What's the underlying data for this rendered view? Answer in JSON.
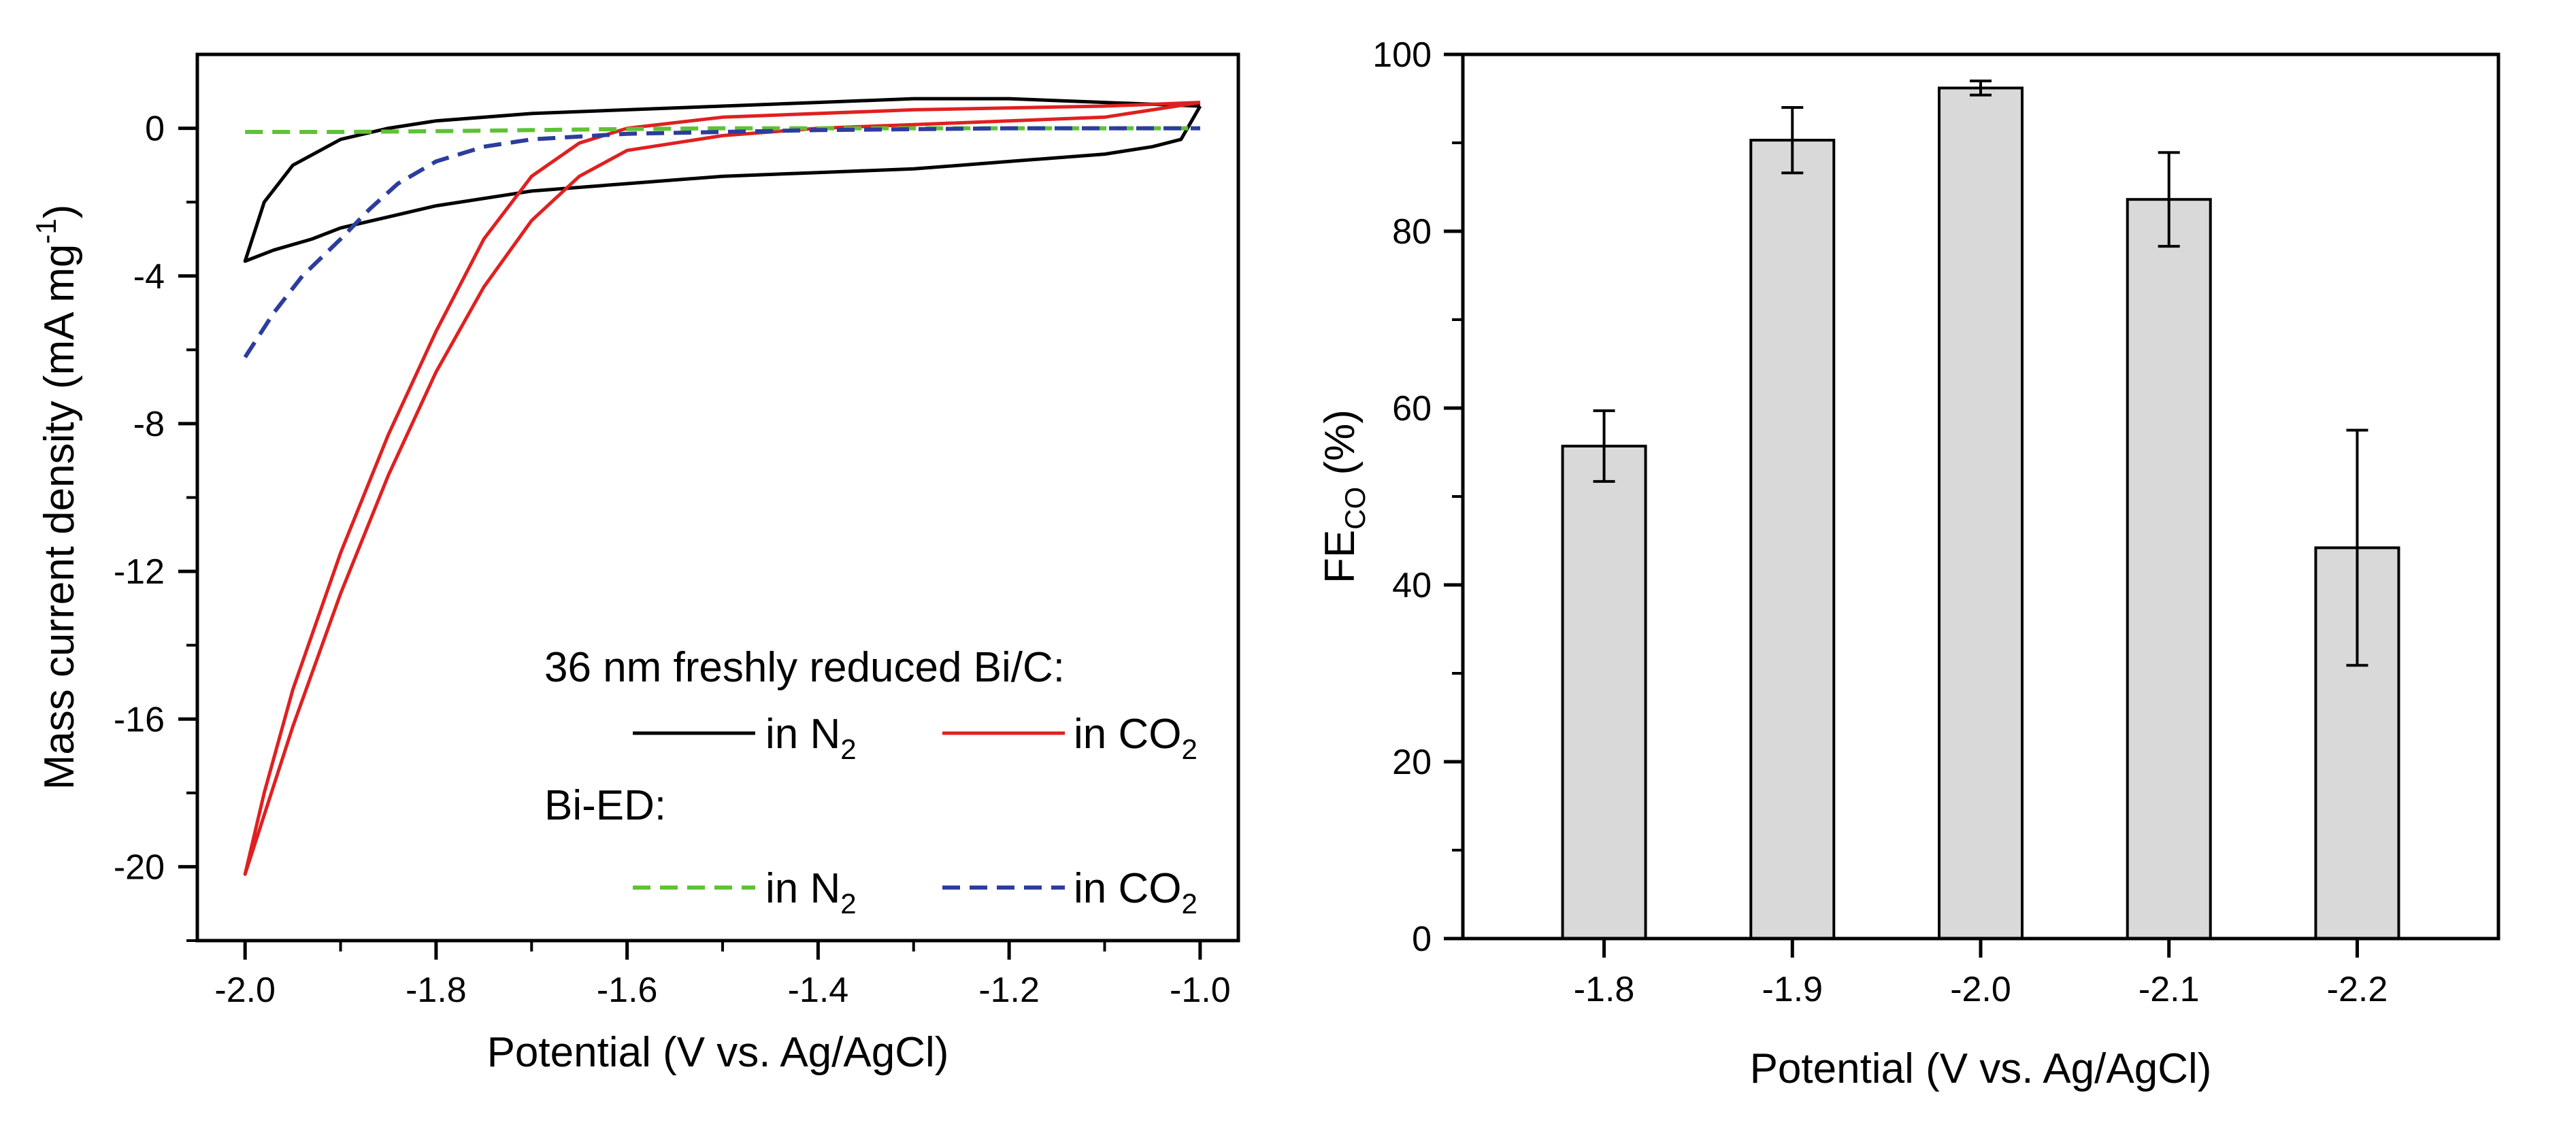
{
  "chart_data": [
    {
      "type": "line",
      "xlabel": "Potential (V vs. Ag/AgCl)",
      "ylabel": {
        "main": "Mass current density (mA mg",
        "sup": "-1",
        "end": ")"
      },
      "xlim": [
        -2.05,
        -0.96
      ],
      "ylim": [
        -22,
        2
      ],
      "x_ticks": [
        -2.0,
        -1.8,
        -1.6,
        -1.4,
        -1.2,
        -1.0
      ],
      "x_tick_labels": [
        "-2.0",
        "-1.8",
        "-1.6",
        "-1.4",
        "-1.2",
        "-1.0"
      ],
      "y_ticks": [
        0,
        -4,
        -8,
        -12,
        -16,
        -20
      ],
      "y_tick_labels": [
        "0",
        "-4",
        "-8",
        "-12",
        "-16",
        "-20"
      ],
      "legend": {
        "group1_title": "36 nm freshly reduced Bi/C:",
        "group2_title": "Bi-ED:",
        "entries": [
          {
            "label": "in N",
            "sub": "2",
            "color": "#000000",
            "dash": "solid"
          },
          {
            "label": "in CO",
            "sub": "2",
            "color": "#e02020",
            "dash": "solid"
          },
          {
            "label": "in N",
            "sub": "2",
            "color": "#5ec234",
            "dash": "dashed"
          },
          {
            "label": "in CO",
            "sub": "2",
            "color": "#2c3d9e",
            "dash": "dashed"
          }
        ]
      },
      "series": [
        {
          "color": "#000000",
          "dash": "solid",
          "points": [
            [
              -1.0,
              0.6
            ],
            [
              -1.1,
              0.7
            ],
            [
              -1.2,
              0.8
            ],
            [
              -1.3,
              0.8
            ],
            [
              -1.4,
              0.7
            ],
            [
              -1.5,
              0.6
            ],
            [
              -1.6,
              0.5
            ],
            [
              -1.7,
              0.4
            ],
            [
              -1.8,
              0.2
            ],
            [
              -1.85,
              0.0
            ],
            [
              -1.9,
              -0.3
            ],
            [
              -1.95,
              -1.0
            ],
            [
              -1.98,
              -2.0
            ],
            [
              -2.0,
              -3.6
            ],
            [
              -1.97,
              -3.3
            ],
            [
              -1.93,
              -3.0
            ],
            [
              -1.9,
              -2.7
            ],
            [
              -1.85,
              -2.4
            ],
            [
              -1.8,
              -2.1
            ],
            [
              -1.7,
              -1.7
            ],
            [
              -1.6,
              -1.5
            ],
            [
              -1.5,
              -1.3
            ],
            [
              -1.4,
              -1.2
            ],
            [
              -1.3,
              -1.1
            ],
            [
              -1.2,
              -0.9
            ],
            [
              -1.1,
              -0.7
            ],
            [
              -1.05,
              -0.5
            ],
            [
              -1.02,
              -0.3
            ],
            [
              -1.0,
              0.6
            ]
          ]
        },
        {
          "color": "#e02020",
          "dash": "solid",
          "points": [
            [
              -1.0,
              0.7
            ],
            [
              -1.1,
              0.6
            ],
            [
              -1.3,
              0.5
            ],
            [
              -1.5,
              0.3
            ],
            [
              -1.6,
              0.0
            ],
            [
              -1.65,
              -0.4
            ],
            [
              -1.7,
              -1.3
            ],
            [
              -1.75,
              -3.0
            ],
            [
              -1.8,
              -5.5
            ],
            [
              -1.85,
              -8.3
            ],
            [
              -1.9,
              -11.5
            ],
            [
              -1.95,
              -15.2
            ],
            [
              -1.98,
              -18.0
            ],
            [
              -2.0,
              -20.2
            ],
            [
              -1.98,
              -18.6
            ],
            [
              -1.95,
              -16.2
            ],
            [
              -1.9,
              -12.6
            ],
            [
              -1.85,
              -9.4
            ],
            [
              -1.8,
              -6.6
            ],
            [
              -1.75,
              -4.3
            ],
            [
              -1.7,
              -2.5
            ],
            [
              -1.65,
              -1.3
            ],
            [
              -1.6,
              -0.6
            ],
            [
              -1.5,
              -0.2
            ],
            [
              -1.4,
              0.0
            ],
            [
              -1.3,
              0.1
            ],
            [
              -1.2,
              0.2
            ],
            [
              -1.1,
              0.3
            ],
            [
              -1.0,
              0.7
            ]
          ]
        },
        {
          "color": "#5ec234",
          "dash": "dashed",
          "points": [
            [
              -2.0,
              -0.1
            ],
            [
              -1.9,
              -0.1
            ],
            [
              -1.8,
              -0.08
            ],
            [
              -1.7,
              -0.05
            ],
            [
              -1.6,
              -0.02
            ],
            [
              -1.5,
              0.0
            ],
            [
              -1.4,
              0.0
            ],
            [
              -1.3,
              0.0
            ],
            [
              -1.2,
              0.0
            ],
            [
              -1.1,
              0.0
            ],
            [
              -1.0,
              0.0
            ]
          ]
        },
        {
          "color": "#2c3d9e",
          "dash": "dashed",
          "points": [
            [
              -2.0,
              -6.2
            ],
            [
              -1.97,
              -5.0
            ],
            [
              -1.94,
              -4.0
            ],
            [
              -1.9,
              -3.0
            ],
            [
              -1.87,
              -2.2
            ],
            [
              -1.84,
              -1.5
            ],
            [
              -1.8,
              -0.9
            ],
            [
              -1.75,
              -0.5
            ],
            [
              -1.7,
              -0.3
            ],
            [
              -1.6,
              -0.15
            ],
            [
              -1.4,
              -0.05
            ],
            [
              -1.2,
              0.0
            ],
            [
              -1.0,
              0.0
            ]
          ]
        }
      ]
    },
    {
      "type": "bar",
      "xlabel": "Potential (V vs. Ag/AgCl)",
      "ylabel": {
        "main": "FE",
        "sub": "CO",
        "end": " (%)"
      },
      "ylim": [
        0,
        100
      ],
      "y_ticks": [
        0,
        20,
        40,
        60,
        80,
        100
      ],
      "y_tick_labels": [
        "0",
        "20",
        "40",
        "60",
        "80",
        "100"
      ],
      "categories": [
        "-1.8",
        "-1.9",
        "-2.0",
        "-2.1",
        "-2.2"
      ],
      "values": [
        55.7,
        90.3,
        96.2,
        83.6,
        44.2
      ],
      "errors": [
        4.0,
        3.7,
        0.8,
        5.3,
        13.3
      ],
      "bar_color": "#d9d9d9"
    }
  ]
}
